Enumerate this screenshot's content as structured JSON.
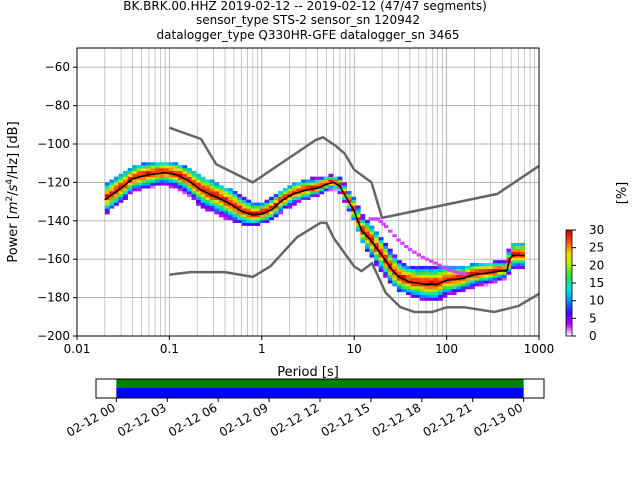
{
  "title_lines": [
    "BK.BRK.00.HHZ   2019-02-12 -- 2019-02-12  (47/47 segments)",
    "sensor_type STS-2 sensor_sn 120942",
    "datalogger_type Q330HR-GFE datalogger_sn 3465"
  ],
  "chart_data": {
    "type": "heatmap",
    "xlabel": "Period [s]",
    "ylabel": "Power [m²/s⁴/Hz] [dB]",
    "ylabel_parts": {
      "pre": "Power [",
      "m": "m",
      "exp2": "2",
      "mid": "/",
      "s": "s",
      "exp4": "4",
      "post": "/Hz] [dB]"
    },
    "x_scale": "log",
    "xlim": [
      0.01,
      1000
    ],
    "ylim": [
      -200,
      -50
    ],
    "x_ticks": [
      {
        "value": 0.01,
        "label": "0.01"
      },
      {
        "value": 0.1,
        "label": "0.1"
      },
      {
        "value": 1,
        "label": "1"
      },
      {
        "value": 10,
        "label": "10"
      },
      {
        "value": 100,
        "label": "100"
      },
      {
        "value": 1000,
        "label": "1000"
      }
    ],
    "y_ticks": [
      {
        "value": -60,
        "label": "−60"
      },
      {
        "value": -80,
        "label": "−80"
      },
      {
        "value": -100,
        "label": "−100"
      },
      {
        "value": -120,
        "label": "−120"
      },
      {
        "value": -140,
        "label": "−140"
      },
      {
        "value": -160,
        "label": "−160"
      },
      {
        "value": -180,
        "label": "−180"
      },
      {
        "value": -200,
        "label": "−200"
      }
    ],
    "grid": true,
    "noise_models": [
      {
        "name": "high",
        "points": [
          [
            0.1,
            -91.5
          ],
          [
            0.22,
            -97.4
          ],
          [
            0.32,
            -110.5
          ],
          [
            0.8,
            -120
          ],
          [
            3.8,
            -98
          ],
          [
            4.6,
            -96.5
          ],
          [
            6.3,
            -101
          ],
          [
            7.9,
            -105
          ],
          [
            10,
            -113.4
          ],
          [
            15.4,
            -120
          ],
          [
            20,
            -138.5
          ],
          [
            354,
            -126
          ],
          [
            1000,
            -111.4
          ]
        ]
      },
      {
        "name": "low",
        "points": [
          [
            0.1,
            -168
          ],
          [
            0.17,
            -166.7
          ],
          [
            0.4,
            -166.7
          ],
          [
            0.8,
            -169.2
          ],
          [
            1.24,
            -163.7
          ],
          [
            2.4,
            -148.6
          ],
          [
            4.3,
            -141.1
          ],
          [
            5,
            -141.1
          ],
          [
            6,
            -149
          ],
          [
            10,
            -163.8
          ],
          [
            12,
            -166.2
          ],
          [
            15.6,
            -162.1
          ],
          [
            21.9,
            -177.5
          ],
          [
            31.6,
            -185
          ],
          [
            45,
            -187.5
          ],
          [
            70,
            -187.5
          ],
          [
            101,
            -185
          ],
          [
            154,
            -185
          ],
          [
            328,
            -187.5
          ],
          [
            600,
            -184.4
          ],
          [
            1000,
            -178
          ]
        ]
      }
    ],
    "median_curve": [
      [
        0.02,
        -129
      ],
      [
        0.03,
        -123
      ],
      [
        0.04,
        -118
      ],
      [
        0.06,
        -116
      ],
      [
        0.09,
        -115
      ],
      [
        0.12,
        -116
      ],
      [
        0.16,
        -119
      ],
      [
        0.22,
        -124
      ],
      [
        0.3,
        -127
      ],
      [
        0.45,
        -131
      ],
      [
        0.6,
        -135
      ],
      [
        0.8,
        -137
      ],
      [
        1,
        -136.5
      ],
      [
        1.3,
        -134
      ],
      [
        1.7,
        -129
      ],
      [
        2.2,
        -126
      ],
      [
        3,
        -124
      ],
      [
        4,
        -123
      ],
      [
        5,
        -121
      ],
      [
        6,
        -120
      ],
      [
        7,
        -122
      ],
      [
        8,
        -127
      ],
      [
        10,
        -135
      ],
      [
        12,
        -145
      ],
      [
        15,
        -150
      ],
      [
        20,
        -158
      ],
      [
        25,
        -165
      ],
      [
        30,
        -169
      ],
      [
        40,
        -172
      ],
      [
        60,
        -173
      ],
      [
        80,
        -173
      ],
      [
        100,
        -171
      ],
      [
        150,
        -170
      ],
      [
        200,
        -168
      ],
      [
        300,
        -167
      ],
      [
        400,
        -166
      ],
      [
        450,
        -166
      ],
      [
        480,
        -160
      ],
      [
        520,
        -158
      ],
      [
        700,
        -158
      ]
    ],
    "pdf_band": [
      [
        0.02,
        -136,
        -122
      ],
      [
        0.03,
        -130,
        -116
      ],
      [
        0.04,
        -124,
        -112
      ],
      [
        0.06,
        -122,
        -110
      ],
      [
        0.09,
        -121,
        -110
      ],
      [
        0.12,
        -123,
        -111
      ],
      [
        0.16,
        -126,
        -113
      ],
      [
        0.22,
        -132,
        -117
      ],
      [
        0.3,
        -135,
        -120
      ],
      [
        0.45,
        -139,
        -124
      ],
      [
        0.6,
        -141,
        -128
      ],
      [
        0.8,
        -142,
        -131
      ],
      [
        1,
        -141,
        -131
      ],
      [
        1.3,
        -139,
        -128
      ],
      [
        1.7,
        -134,
        -124
      ],
      [
        2.2,
        -131,
        -121
      ],
      [
        3,
        -128,
        -119
      ],
      [
        4,
        -126,
        -118
      ],
      [
        5,
        -124,
        -117
      ],
      [
        6,
        -123,
        -117
      ],
      [
        7,
        -125,
        -118
      ],
      [
        8,
        -130,
        -122
      ],
      [
        10,
        -140,
        -128
      ],
      [
        12,
        -150,
        -137
      ],
      [
        15,
        -158,
        -142
      ],
      [
        20,
        -166,
        -150
      ],
      [
        25,
        -172,
        -156
      ],
      [
        30,
        -176,
        -161
      ],
      [
        40,
        -178,
        -164
      ],
      [
        60,
        -181,
        -165
      ],
      [
        80,
        -181,
        -165
      ],
      [
        100,
        -179,
        -165
      ],
      [
        150,
        -176,
        -164
      ],
      [
        200,
        -174,
        -163
      ],
      [
        300,
        -172,
        -162
      ],
      [
        400,
        -170,
        -162
      ],
      [
        450,
        -170,
        -162
      ],
      [
        480,
        -165,
        -153
      ],
      [
        520,
        -165,
        -153
      ],
      [
        700,
        -164,
        -152
      ]
    ],
    "outlier_trail": [
      [
        15,
        -139
      ],
      [
        18,
        -139
      ],
      [
        22,
        -143
      ],
      [
        30,
        -150
      ],
      [
        40,
        -155
      ],
      [
        55,
        -159
      ],
      [
        75,
        -162
      ],
      [
        100,
        -165
      ],
      [
        130,
        -167
      ],
      [
        170,
        -168
      ]
    ],
    "colorbar": {
      "label": "[%]",
      "min": 0,
      "max": 30,
      "ticks": [
        {
          "value": 0,
          "label": "0"
        },
        {
          "value": 5,
          "label": "5"
        },
        {
          "value": 10,
          "label": "10"
        },
        {
          "value": 15,
          "label": "15"
        },
        {
          "value": 20,
          "label": "20"
        },
        {
          "value": 25,
          "label": "25"
        },
        {
          "value": 30,
          "label": "30"
        }
      ],
      "stops": [
        "#ffffff",
        "#bf00ff",
        "#3d0bff",
        "#0094ff",
        "#00e5e5",
        "#22e05a",
        "#a8f000",
        "#ffd700",
        "#ff4c00",
        "#cc0000"
      ]
    }
  },
  "timeline": {
    "ticks": [
      "02-12 00",
      "02-12 03",
      "02-12 06",
      "02-12 09",
      "02-12 12",
      "02-12 15",
      "02-12 18",
      "02-12 21",
      "02-13 00"
    ],
    "data_start_hour": 0,
    "data_end_hour": 24,
    "axis_start_hour": -1.2,
    "axis_end_hour": 25.2,
    "coverage_color": "#0000ff",
    "processed_color": "#008000"
  }
}
